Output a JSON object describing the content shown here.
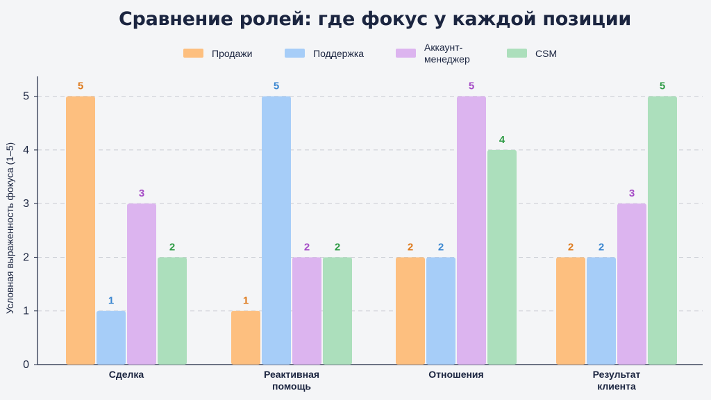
{
  "chart_data": {
    "type": "bar",
    "title": "Сравнение ролей: где фокус у каждой позиции",
    "xlabel": "",
    "ylabel": "Условная выраженность фокуса (1–5)",
    "ylim": [
      0,
      5.5
    ],
    "yticks": [
      "0",
      "1",
      "2",
      "3",
      "4",
      "5"
    ],
    "grid": "horizontal-dashed",
    "legend_position": "top",
    "categories": [
      [
        "Сделка"
      ],
      [
        "Реактивная",
        "помощь"
      ],
      [
        "Отношения"
      ],
      [
        "Результат",
        "клиента"
      ]
    ],
    "series": [
      {
        "name": [
          "Продажи"
        ],
        "values": [
          5,
          1,
          2,
          2
        ],
        "color": "#fdbf7f",
        "label_color": "#de7a1c"
      },
      {
        "name": [
          "Поддержка"
        ],
        "values": [
          1,
          5,
          2,
          2
        ],
        "color": "#a6cdf8",
        "label_color": "#3a86d0"
      },
      {
        "name": [
          "Аккаунт-",
          "менеджер"
        ],
        "values": [
          3,
          2,
          5,
          3
        ],
        "color": "#dcb4ef",
        "label_color": "#a54bc6"
      },
      {
        "name": [
          "CSM"
        ],
        "values": [
          2,
          2,
          4,
          5
        ],
        "color": "#acdfbc",
        "label_color": "#2f9b46"
      }
    ]
  }
}
